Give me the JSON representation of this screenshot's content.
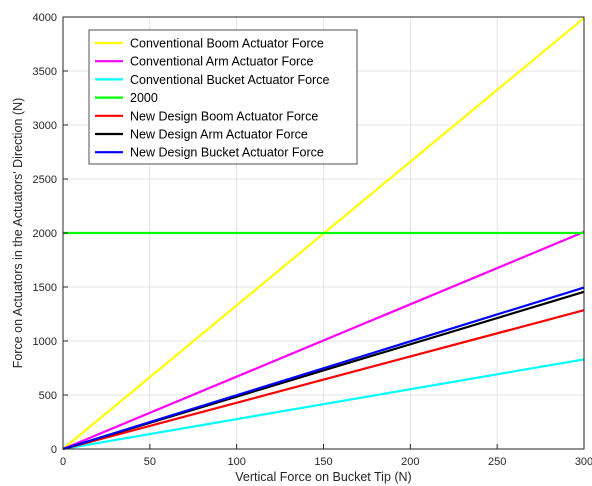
{
  "chart_data": {
    "type": "line",
    "title": "",
    "xlabel": "Vertical Force on Bucket Tip (N)",
    "ylabel": "Force on Actuators in the Actuators' Direction (N)",
    "xlim": [
      0,
      300
    ],
    "ylim": [
      0,
      4000
    ],
    "xticks": [
      0,
      50,
      100,
      150,
      200,
      250,
      300
    ],
    "yticks": [
      0,
      500,
      1000,
      1500,
      2000,
      2500,
      3000,
      3500,
      4000
    ],
    "grid": true,
    "legend_position": "top-left",
    "x": [
      0,
      300
    ],
    "series": [
      {
        "name": "Conventional Boom Actuator Force",
        "values": [
          0,
          3990
        ],
        "color": "#ffff00"
      },
      {
        "name": "Conventional Arm Actuator Force",
        "values": [
          0,
          2010
        ],
        "color": "#ff00ff"
      },
      {
        "name": "Conventional Bucket Actuator Force",
        "values": [
          0,
          830
        ],
        "color": "#00ffff"
      },
      {
        "name": "2000",
        "values": [
          2000,
          2000
        ],
        "color": "#00ff00"
      },
      {
        "name": "New Design Boom Actuator Force",
        "values": [
          0,
          1285
        ],
        "color": "#ff0000"
      },
      {
        "name": "New Design Arm Actuator Force",
        "values": [
          0,
          1455
        ],
        "color": "#000000"
      },
      {
        "name": "New Design Bucket Actuator Force",
        "values": [
          0,
          1495
        ],
        "color": "#0000ff"
      }
    ]
  }
}
